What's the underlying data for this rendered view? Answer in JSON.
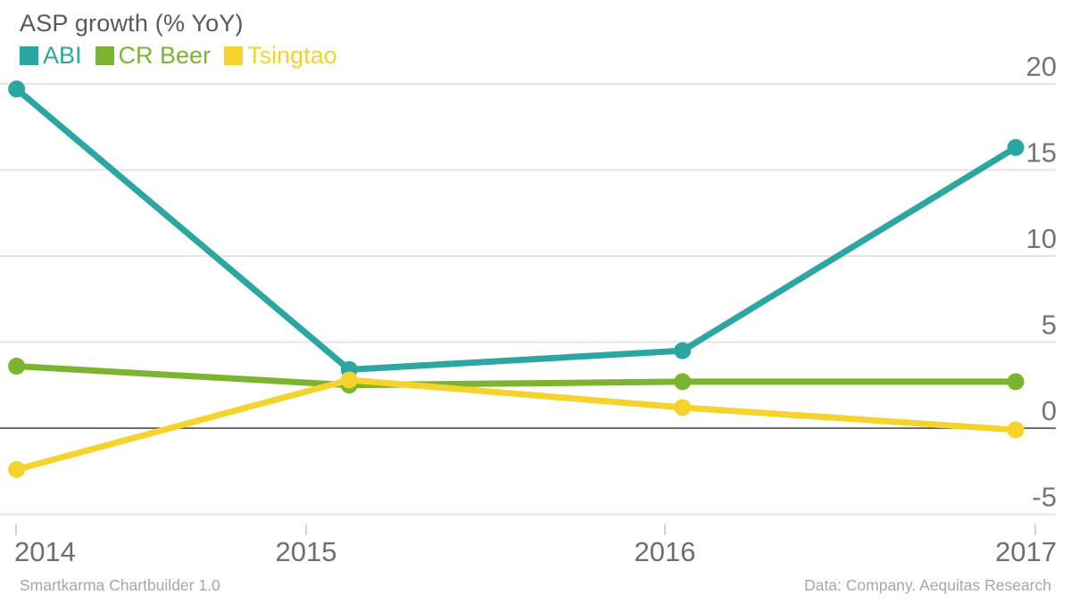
{
  "header": {
    "title": "ASP growth (% YoY)"
  },
  "footer": {
    "left": "Smartkarma Chartbuilder 1.0",
    "right": "Data: Company. Aequitas Research"
  },
  "chart_data": {
    "type": "line",
    "title": "ASP growth (% YoY)",
    "xlabel": "",
    "ylabel": "",
    "categories": [
      "2014",
      "2015",
      "2016",
      "2017"
    ],
    "series": [
      {
        "name": "ABI",
        "color": "#2BA6A1",
        "values": [
          19.7,
          3.4,
          4.5,
          16.3
        ]
      },
      {
        "name": "CR Beer",
        "color": "#7BB42E",
        "values": [
          3.6,
          2.5,
          2.7,
          2.7
        ]
      },
      {
        "name": "Tsingtao",
        "color": "#F5D32C",
        "values": [
          -2.4,
          2.8,
          1.2,
          -0.1
        ]
      }
    ],
    "yticks": [
      20,
      15,
      10,
      5,
      0,
      -5
    ],
    "ylim": [
      -5,
      20
    ],
    "grid": true,
    "legend_position": "top-left",
    "colors": {
      "grid_line": "#E4E4E4",
      "zero_line": "#6E6E6E",
      "axis_label": "#757575",
      "x_label": "#6E6E6E",
      "tick_mark": "#D2D2D2"
    }
  }
}
